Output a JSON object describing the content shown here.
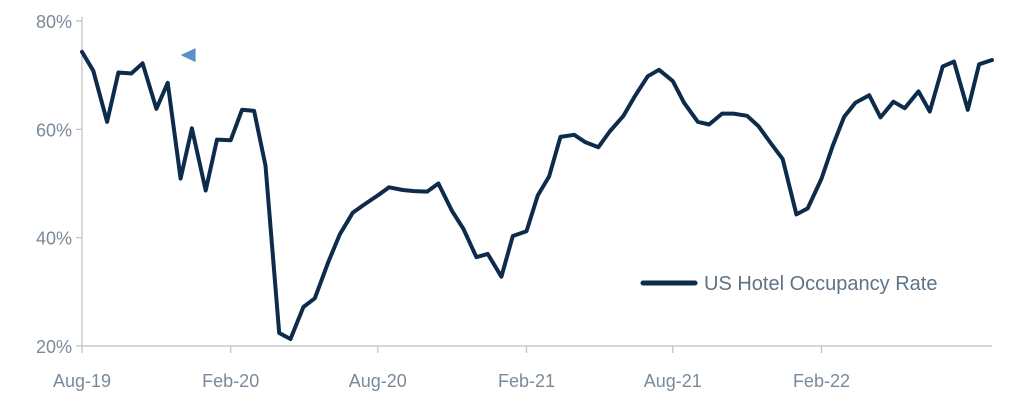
{
  "chart_data": {
    "type": "line",
    "title": "",
    "xlabel": "",
    "ylabel": "",
    "ylim": [
      20,
      80
    ],
    "y_ticks": [
      "20%",
      "40%",
      "60%",
      "80%"
    ],
    "y_tick_values": [
      20,
      40,
      60,
      80
    ],
    "x_ticks": [
      "Aug-19",
      "Feb-20",
      "Aug-20",
      "Feb-21",
      "Aug-21",
      "Feb-22"
    ],
    "x_tick_values": [
      "2019-08-01",
      "2020-02-01",
      "2020-08-01",
      "2021-02-01",
      "2021-08-01",
      "2022-02-01"
    ],
    "xlim": [
      "2019-08-01",
      "2022-08-31"
    ],
    "grid": false,
    "legend_position": "bottom-right",
    "series": [
      {
        "name": "US Hotel Occupancy Rate",
        "color": "#0d2b4a",
        "x": [
          "2019-08-01",
          "2019-08-15",
          "2019-09-01",
          "2019-09-15",
          "2019-10-01",
          "2019-10-15",
          "2019-11-01",
          "2019-11-15",
          "2019-12-01",
          "2019-12-15",
          "2020-01-01",
          "2020-01-15",
          "2020-02-01",
          "2020-02-15",
          "2020-03-01",
          "2020-03-15",
          "2020-04-01",
          "2020-04-15",
          "2020-05-01",
          "2020-05-15",
          "2020-06-01",
          "2020-06-15",
          "2020-07-01",
          "2020-07-15",
          "2020-08-01",
          "2020-08-15",
          "2020-09-01",
          "2020-09-15",
          "2020-10-01",
          "2020-10-15",
          "2020-11-01",
          "2020-11-15",
          "2020-12-01",
          "2020-12-15",
          "2021-01-01",
          "2021-01-15",
          "2021-02-01",
          "2021-02-15",
          "2021-03-01",
          "2021-03-15",
          "2021-04-01",
          "2021-04-15",
          "2021-05-01",
          "2021-05-15",
          "2021-06-01",
          "2021-06-15",
          "2021-07-01",
          "2021-07-15",
          "2021-08-01",
          "2021-08-15",
          "2021-09-01",
          "2021-09-15",
          "2021-10-01",
          "2021-10-15",
          "2021-11-01",
          "2021-11-15",
          "2021-12-01",
          "2021-12-15",
          "2022-01-01",
          "2022-01-15",
          "2022-02-01",
          "2022-02-15",
          "2022-03-01",
          "2022-03-15",
          "2022-04-01",
          "2022-04-15",
          "2022-05-01",
          "2022-05-15",
          "2022-06-01",
          "2022-06-15",
          "2022-07-01",
          "2022-07-15",
          "2022-08-01",
          "2022-08-15",
          "2022-08-31"
        ],
        "values": [
          74.3,
          70.8,
          61.4,
          70.5,
          70.3,
          72.2,
          63.8,
          68.6,
          50.9,
          60.2,
          48.7,
          58.1,
          58.0,
          63.6,
          63.4,
          53.3,
          22.4,
          21.3,
          27.2,
          28.8,
          35.6,
          40.6,
          44.6,
          46.1,
          47.8,
          49.3,
          48.8,
          48.6,
          48.5,
          50.0,
          44.9,
          41.6,
          36.4,
          37.0,
          32.8,
          40.3,
          41.2,
          47.8,
          51.3,
          58.6,
          59.0,
          57.6,
          56.7,
          59.6,
          62.5,
          66.1,
          69.8,
          71.0,
          68.9,
          64.9,
          61.4,
          60.9,
          62.9,
          62.9,
          62.5,
          60.6,
          57.3,
          54.5,
          44.3,
          45.4,
          50.9,
          57.0,
          62.3,
          64.9,
          66.3,
          62.2,
          65.1,
          63.9,
          67.0,
          63.3,
          71.6,
          72.5,
          63.6,
          72.0,
          72.8
        ]
      }
    ],
    "reference_line": {
      "type": "horizontal-dashed-arrow",
      "y": 73.7,
      "x_start": "2019-12-01",
      "x_end": "2022-08-31",
      "color": "#5b8fc6"
    }
  }
}
